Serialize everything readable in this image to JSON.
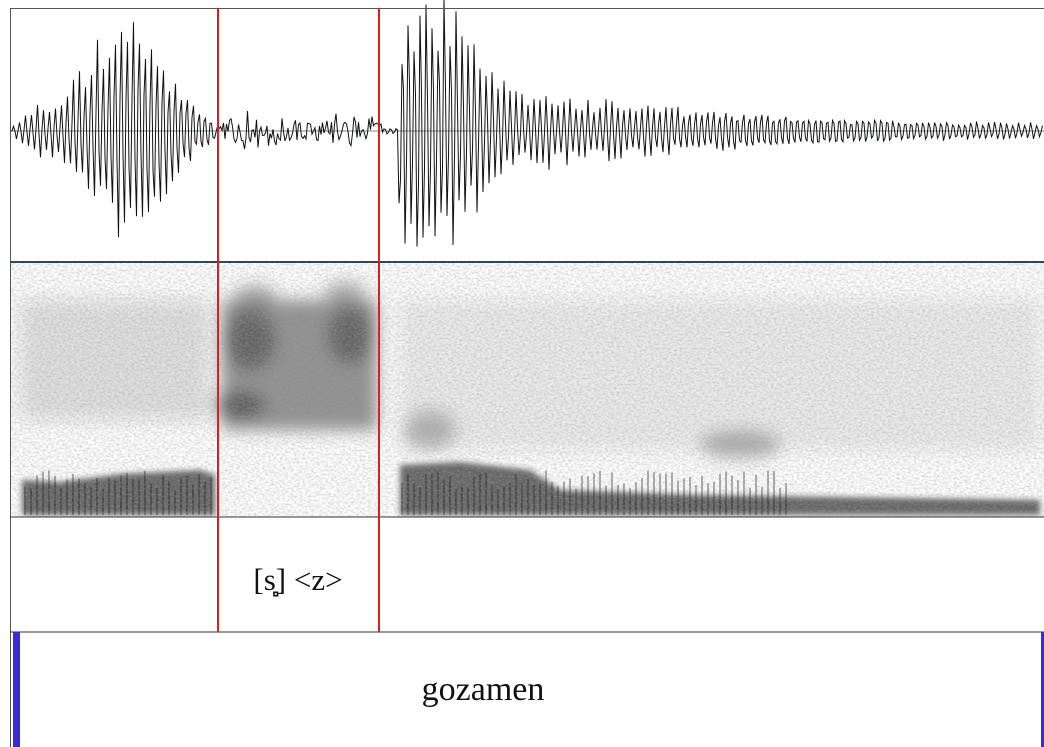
{
  "tiers": [
    {
      "label": "[s̻] <z>"
    },
    {
      "label": "gozamen"
    }
  ]
}
